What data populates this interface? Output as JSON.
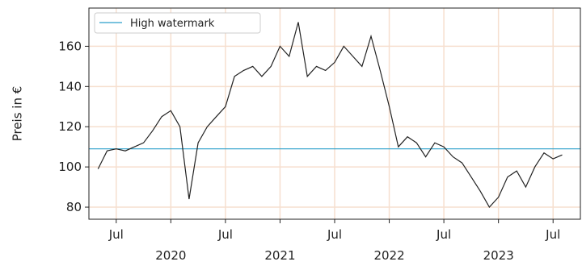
{
  "chart_data": {
    "type": "line",
    "ylabel": "Preis in €",
    "x": [
      "2019-05",
      "2019-06",
      "2019-07",
      "2019-08",
      "2019-09",
      "2019-10",
      "2019-11",
      "2019-12",
      "2020-01",
      "2020-02",
      "2020-03",
      "2020-04",
      "2020-05",
      "2020-06",
      "2020-07",
      "2020-08",
      "2020-09",
      "2020-10",
      "2020-11",
      "2020-12",
      "2021-01",
      "2021-02",
      "2021-03",
      "2021-04",
      "2021-05",
      "2021-06",
      "2021-07",
      "2021-08",
      "2021-09",
      "2021-10",
      "2021-11",
      "2021-12",
      "2022-01",
      "2022-02",
      "2022-03",
      "2022-04",
      "2022-05",
      "2022-06",
      "2022-07",
      "2022-08",
      "2022-09",
      "2022-10",
      "2022-11",
      "2022-12",
      "2023-01",
      "2023-02",
      "2023-03",
      "2023-04",
      "2023-05",
      "2023-06",
      "2023-07",
      "2023-08"
    ],
    "series": [
      {
        "color": "#222222",
        "values": [
          99,
          108,
          109,
          108,
          110,
          112,
          118,
          125,
          128,
          120,
          84,
          112,
          120,
          125,
          130,
          145,
          148,
          150,
          145,
          150,
          160,
          155,
          172,
          145,
          150,
          148,
          152,
          160,
          155,
          150,
          165,
          148,
          130,
          110,
          115,
          112,
          105,
          112,
          110,
          105,
          102,
          95,
          88,
          80,
          85,
          95,
          98,
          90,
          100,
          107,
          104,
          106
        ]
      }
    ],
    "hline": {
      "name": "High watermark",
      "value": 109,
      "color": "#2a9fc9"
    },
    "xlim": [
      "2019-04",
      "2023-10"
    ],
    "xticks": [
      {
        "value": "2019-07",
        "label": "Jul"
      },
      {
        "value": "2020-01",
        "label": "2020"
      },
      {
        "value": "2020-07",
        "label": "Jul"
      },
      {
        "value": "2021-01",
        "label": "2021"
      },
      {
        "value": "2021-07",
        "label": "Jul"
      },
      {
        "value": "2022-01",
        "label": "2022"
      },
      {
        "value": "2022-07",
        "label": "Jul"
      },
      {
        "value": "2023-01",
        "label": "2023"
      },
      {
        "value": "2023-07",
        "label": "Jul"
      }
    ],
    "ylim": [
      74,
      179
    ],
    "yticks": [
      80,
      100,
      120,
      140,
      160
    ],
    "grid": true,
    "grid_color": "#f6dfcf",
    "legend": "upper left"
  }
}
